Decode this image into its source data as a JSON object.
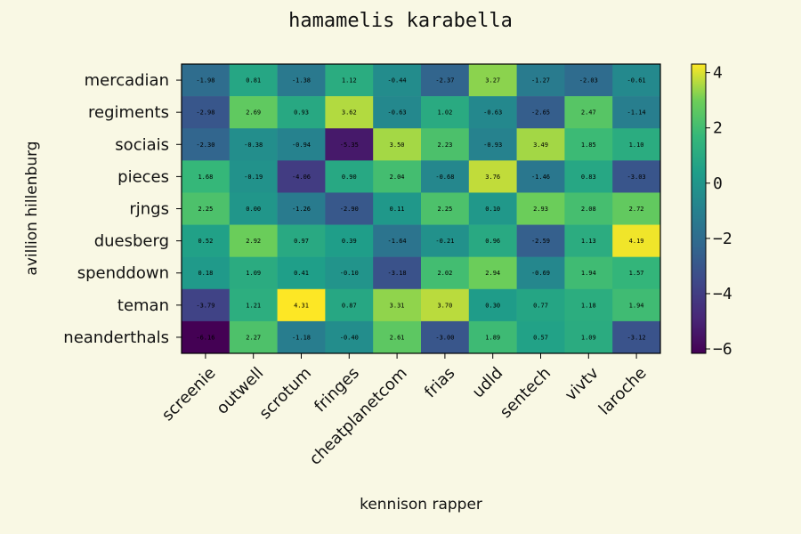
{
  "chart_data": {
    "type": "heatmap",
    "title": "hamamelis karabella",
    "xlabel": "kennison rapper",
    "ylabel": "avillion hillenburg",
    "x_categories": [
      "screenie",
      "outwell",
      "scrotum",
      "fringes",
      "cheatplanetcom",
      "frias",
      "udld",
      "sentech",
      "vivtv",
      "laroche"
    ],
    "y_categories": [
      "mercadian",
      "regiments",
      "sociais",
      "pieces",
      "rjngs",
      "duesberg",
      "spenddown",
      "teman",
      "neanderthals"
    ],
    "values": [
      [
        -1.98,
        0.81,
        -1.38,
        1.12,
        -0.44,
        -2.37,
        3.27,
        -1.27,
        -2.03,
        -0.61
      ],
      [
        -2.98,
        2.69,
        0.93,
        3.62,
        -0.63,
        1.02,
        -0.63,
        -2.65,
        2.47,
        -1.14
      ],
      [
        -2.3,
        -0.38,
        -0.94,
        -5.35,
        3.5,
        2.23,
        -0.93,
        3.49,
        1.85,
        1.1
      ],
      [
        1.68,
        -0.19,
        -4.06,
        0.9,
        2.04,
        -0.68,
        3.76,
        -1.46,
        0.83,
        -3.03
      ],
      [
        2.25,
        0.0,
        -1.26,
        -2.9,
        0.11,
        2.25,
        0.1,
        2.93,
        2.08,
        2.72
      ],
      [
        0.52,
        2.92,
        0.97,
        0.39,
        -1.64,
        -0.21,
        0.96,
        -2.59,
        1.13,
        4.19
      ],
      [
        0.18,
        1.09,
        0.41,
        -0.1,
        -3.18,
        2.02,
        2.94,
        -0.69,
        1.94,
        1.57
      ],
      [
        -3.79,
        1.21,
        4.31,
        0.87,
        3.31,
        3.7,
        0.3,
        0.77,
        1.18,
        1.94
      ],
      [
        -6.16,
        2.27,
        -1.18,
        -0.4,
        2.61,
        -3.0,
        1.89,
        0.57,
        1.09,
        -3.12
      ]
    ],
    "colormap": "viridis",
    "colorbar": {
      "range": [
        -6.16,
        4.31
      ],
      "ticks": [
        4,
        2,
        0,
        -2,
        -4,
        -6
      ]
    },
    "grid": false
  }
}
